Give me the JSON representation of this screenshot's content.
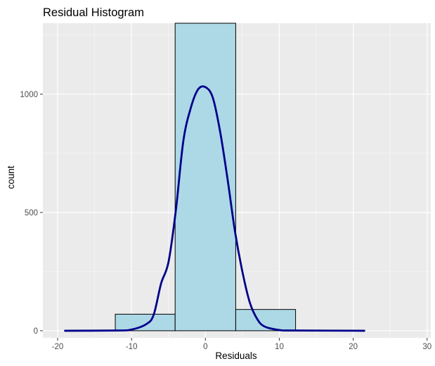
{
  "chart_data": {
    "type": "bar",
    "title": "Residual Histogram",
    "xlabel": "Residuals",
    "ylabel": "count",
    "xlim": [
      -22,
      30.5
    ],
    "ylim": [
      -30,
      1300
    ],
    "x_ticks": [
      -20,
      -10,
      0,
      10,
      20,
      30
    ],
    "y_ticks": [
      0,
      500,
      1000
    ],
    "x_tick_labels": [
      "-20",
      "-10",
      "0",
      "10",
      "20",
      "30"
    ],
    "y_tick_labels": [
      "0",
      "500",
      "1000"
    ],
    "grid": true,
    "colors": {
      "panel": "#ebebeb",
      "grid_major": "#ffffff",
      "bar_fill": "#add8e6",
      "bar_stroke": "#000000",
      "curve": "#00008b"
    },
    "bins": [
      {
        "x0": -20.4,
        "x1": -12.2,
        "count": 0
      },
      {
        "x0": -12.2,
        "x1": -4.1,
        "count": 70
      },
      {
        "x0": -4.1,
        "x1": 4.1,
        "count": 1300
      },
      {
        "x0": 4.1,
        "x1": 12.2,
        "count": 90
      },
      {
        "x0": 12.2,
        "x1": 20.4,
        "count": 0
      },
      {
        "x0": 20.4,
        "x1": 28.5,
        "count": 0
      }
    ],
    "density_curve": {
      "name": "",
      "x": [
        -19,
        -12,
        -10,
        -8,
        -7,
        -6,
        -5,
        -4,
        -3,
        -2,
        -1,
        0,
        1,
        2,
        3,
        4,
        5,
        6,
        7,
        8,
        10,
        12,
        21.5
      ],
      "y": [
        0,
        1,
        5,
        28,
        68,
        200,
        290,
        510,
        800,
        940,
        1020,
        1030,
        985,
        840,
        640,
        420,
        250,
        120,
        50,
        18,
        3,
        1,
        0
      ]
    }
  }
}
